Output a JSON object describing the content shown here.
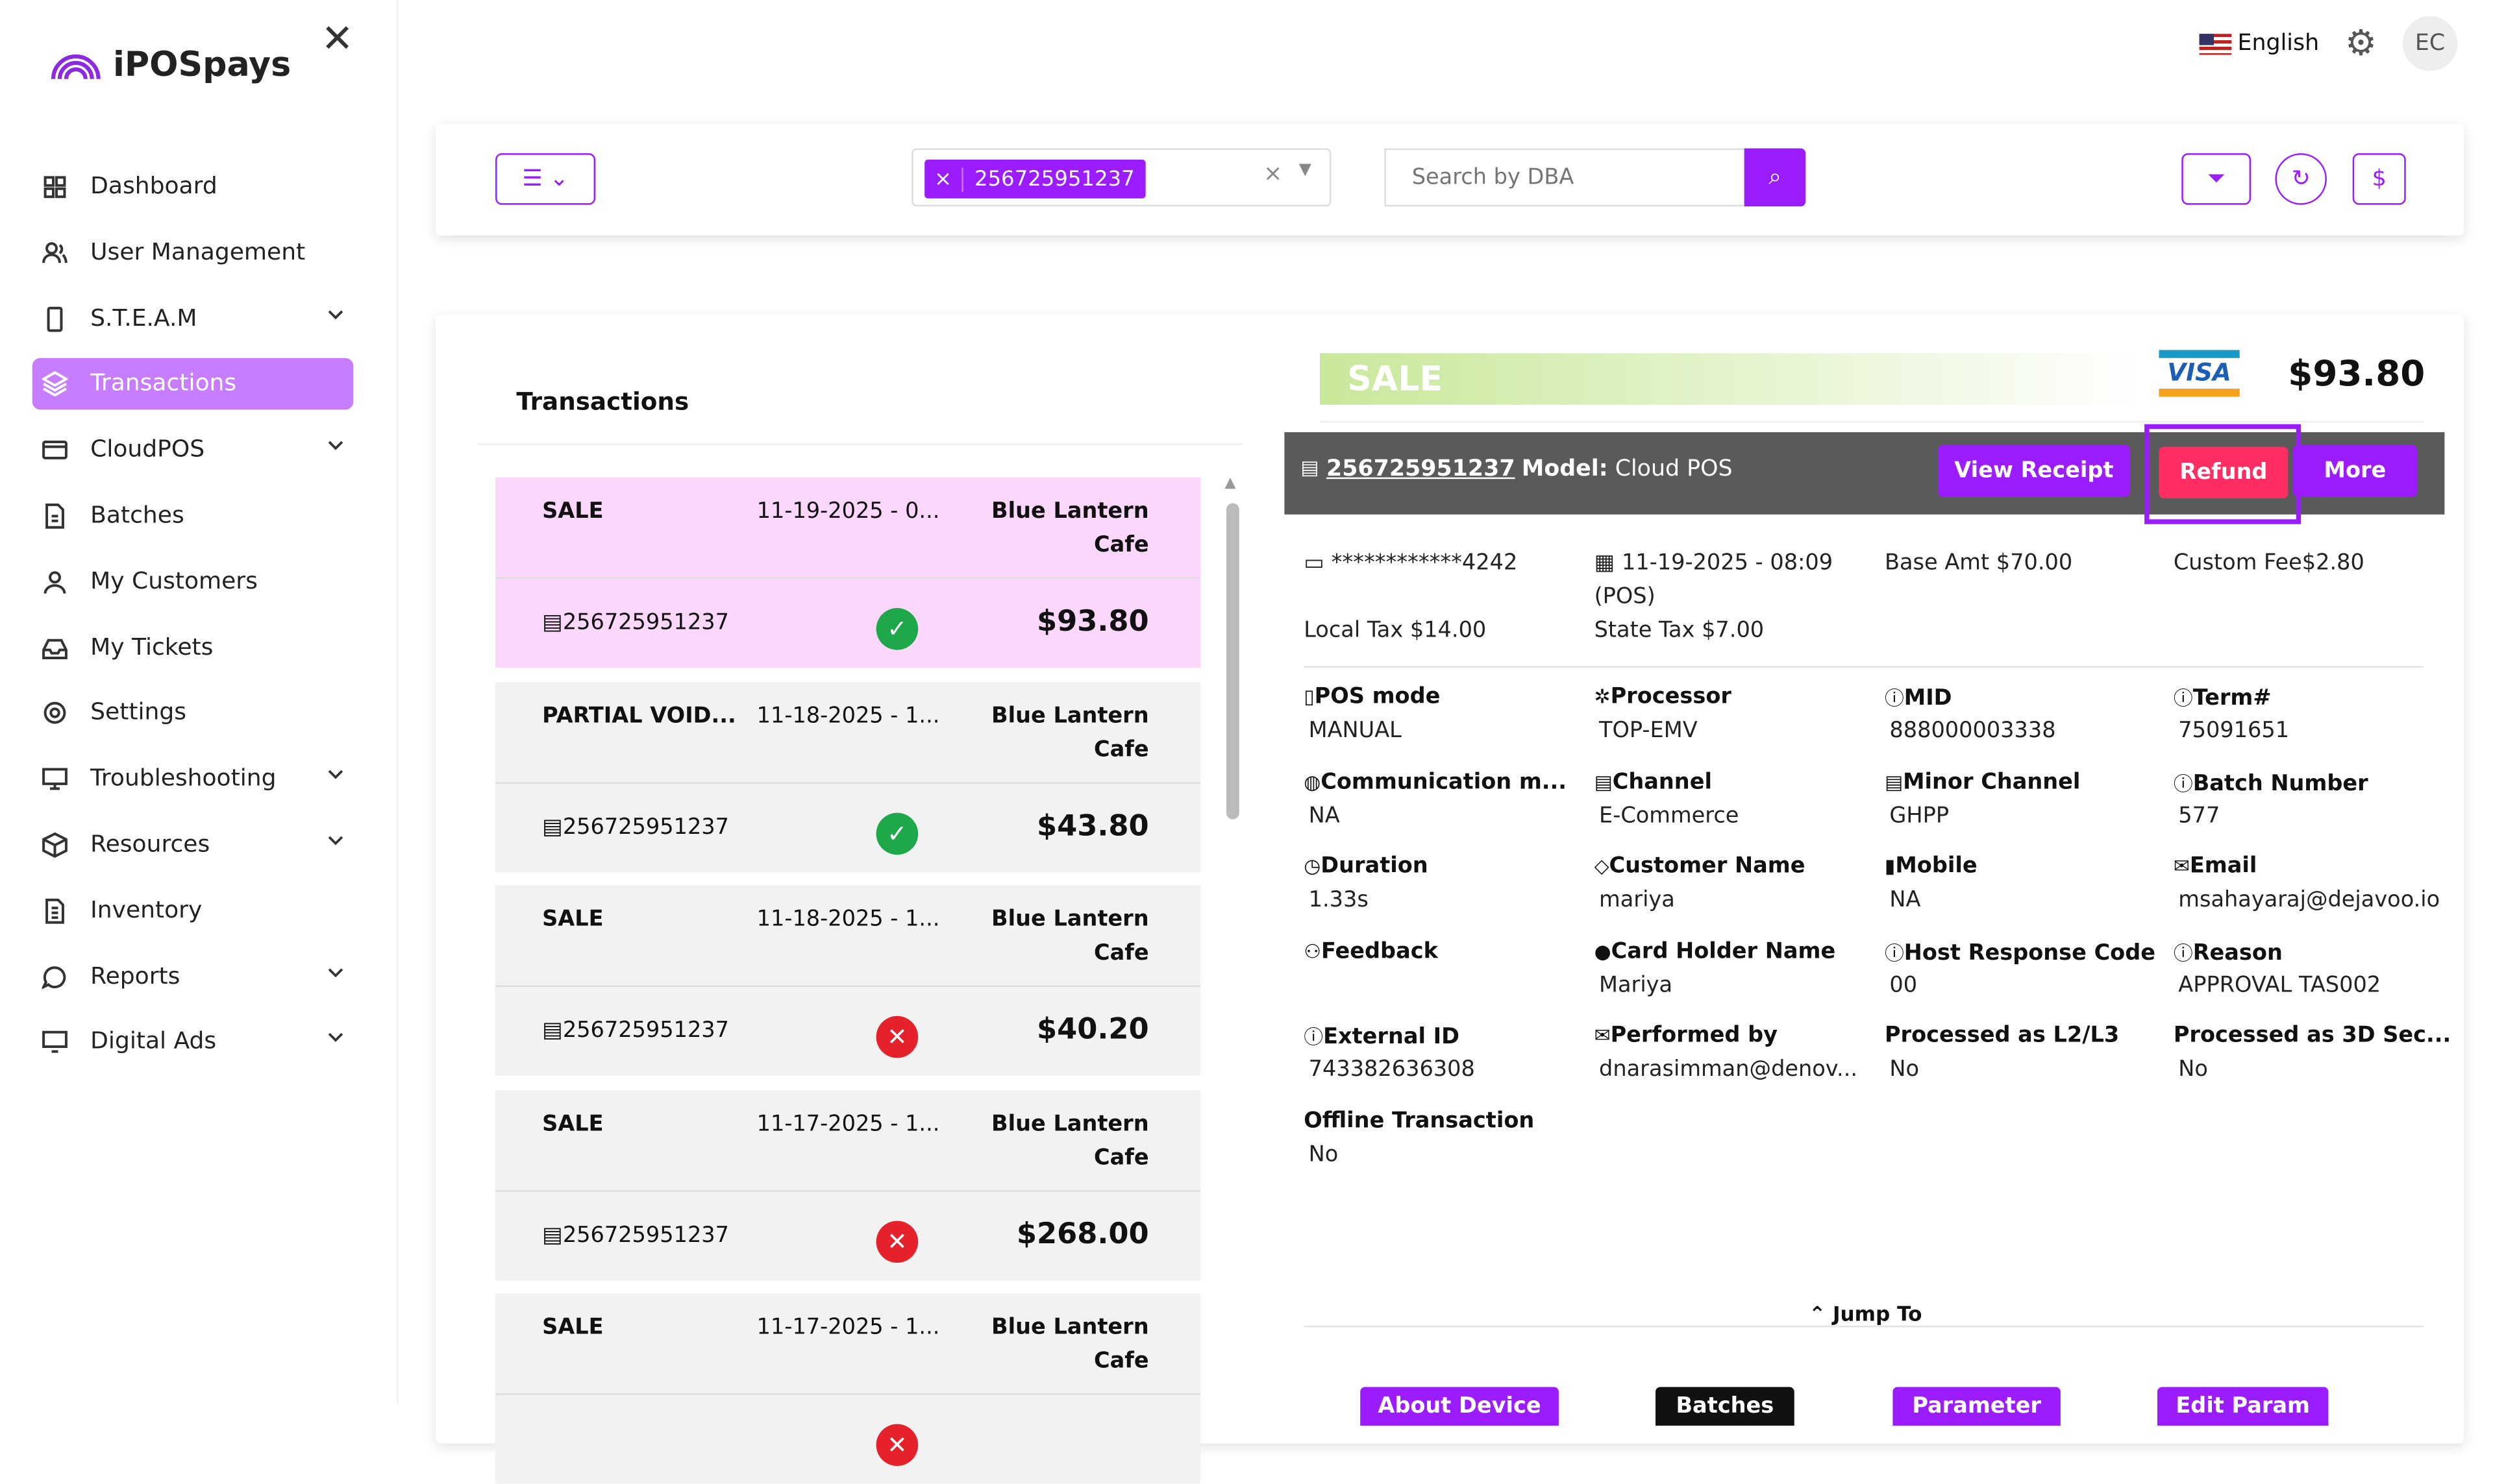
{
  "app": {
    "logo": "iPOSpays",
    "language": "English",
    "avatar": "EC"
  },
  "sidebar": {
    "items": [
      {
        "label": "Dashboard",
        "icon": "grid-icon",
        "chev": false
      },
      {
        "label": "User Management",
        "icon": "users-icon",
        "chev": false
      },
      {
        "label": "S.T.E.A.M",
        "icon": "device-icon",
        "chev": true
      },
      {
        "label": "Transactions",
        "icon": "layers-icon",
        "chev": false,
        "active": true
      },
      {
        "label": "CloudPOS",
        "icon": "card-icon",
        "chev": true
      },
      {
        "label": "Batches",
        "icon": "file-icon",
        "chev": false
      },
      {
        "label": "My Customers",
        "icon": "user-icon",
        "chev": false
      },
      {
        "label": "My Tickets",
        "icon": "inbox-icon",
        "chev": false
      },
      {
        "label": "Settings",
        "icon": "gear-icon",
        "chev": false
      },
      {
        "label": "Troubleshooting",
        "icon": "monitor-icon",
        "chev": true
      },
      {
        "label": "Resources",
        "icon": "box-icon",
        "chev": true
      },
      {
        "label": "Inventory",
        "icon": "document-icon",
        "chev": false
      },
      {
        "label": "Reports",
        "icon": "chat-icon",
        "chev": true
      },
      {
        "label": "Digital Ads",
        "icon": "display-icon",
        "chev": true
      }
    ]
  },
  "toolbar": {
    "chip": "256725951237",
    "search_placeholder": "Search by DBA"
  },
  "list": {
    "title": "Transactions",
    "items": [
      {
        "type": "SALE",
        "date": "11-19-2025 - 0...",
        "merchant1": "Blue Lantern",
        "merchant2": "Cafe",
        "id": "256725951237",
        "ok": true,
        "amount": "$93.80"
      },
      {
        "type": "PARTIAL VOID...",
        "date": "11-18-2025 - 1...",
        "merchant1": "Blue Lantern",
        "merchant2": "Cafe",
        "id": "256725951237",
        "ok": true,
        "amount": "$43.80"
      },
      {
        "type": "SALE",
        "date": "11-18-2025 - 1...",
        "merchant1": "Blue Lantern",
        "merchant2": "Cafe",
        "id": "256725951237",
        "ok": false,
        "amount": "$40.20"
      },
      {
        "type": "SALE",
        "date": "11-17-2025 - 1...",
        "merchant1": "Blue Lantern",
        "merchant2": "Cafe",
        "id": "256725951237",
        "ok": false,
        "amount": "$268.00"
      },
      {
        "type": "SALE",
        "date": "11-17-2025 - 1...",
        "merchant1": "Blue Lantern",
        "merchant2": "Cafe",
        "id": "",
        "ok": false,
        "amount": ""
      }
    ]
  },
  "detail": {
    "type": "SALE",
    "card_brand": "VISA",
    "amount": "$93.80",
    "tid": "256725951237",
    "model_label": "Model:",
    "model": "Cloud POS",
    "view_receipt": "View Receipt",
    "refund": "Refund",
    "more": "More",
    "card": "************4242",
    "datetime": "11-19-2025 - 08:09",
    "datetime2": "(POS)",
    "base": "Base Amt $70.00",
    "custom_fee": "Custom Fee$2.80",
    "local_tax": "Local Tax $14.00",
    "state_tax": "State Tax $7.00",
    "fields": [
      {
        "label": "POS mode",
        "value": "MANUAL",
        "icon": "pos-icon"
      },
      {
        "label": "Processor",
        "value": "TOP-EMV",
        "icon": "cog-icon"
      },
      {
        "label": "MID",
        "value": "888000003338",
        "icon": "info-icon"
      },
      {
        "label": "Term#",
        "value": "75091651",
        "icon": "info-icon"
      },
      {
        "label": "Communication m...",
        "value": "NA",
        "icon": "globe-icon"
      },
      {
        "label": "Channel",
        "value": "E-Commerce",
        "icon": "terminal-icon"
      },
      {
        "label": "Minor Channel",
        "value": "GHPP",
        "icon": "terminal-icon"
      },
      {
        "label": "Batch Number",
        "value": "577",
        "icon": "info-icon"
      },
      {
        "label": "Duration",
        "value": "1.33s",
        "icon": "clock-icon"
      },
      {
        "label": "Customer Name",
        "value": "mariya",
        "icon": "tag-icon"
      },
      {
        "label": "Mobile",
        "value": "NA",
        "icon": "mobile-icon"
      },
      {
        "label": "Email",
        "value": "msahayaraj@dejavoo.io",
        "icon": "mail-icon"
      },
      {
        "label": "Feedback",
        "value": "",
        "icon": "feedback-icon"
      },
      {
        "label": "Card Holder Name",
        "value": "Mariya",
        "icon": "person-icon"
      },
      {
        "label": "Host Response Code",
        "value": "00",
        "icon": "info-icon"
      },
      {
        "label": "Reason",
        "value": "APPROVAL TAS002",
        "icon": "info-icon"
      },
      {
        "label": "External ID",
        "value": "743382636308",
        "icon": "info-icon"
      },
      {
        "label": "Performed by",
        "value": "dnarasimman@denov...",
        "icon": "mail-icon"
      },
      {
        "label": "Processed as L2/L3",
        "value": "No",
        "icon": ""
      },
      {
        "label": "Processed as 3D Sec...",
        "value": "No",
        "icon": ""
      },
      {
        "label": "Offline Transaction",
        "value": "No",
        "icon": ""
      }
    ],
    "jump_to": "Jump To",
    "jump_buttons": [
      {
        "label": "About Device",
        "color": "#9b1cff"
      },
      {
        "label": "Batches",
        "color": "#111111"
      },
      {
        "label": "Parameter",
        "color": "#9b1cff"
      },
      {
        "label": "Edit Param",
        "color": "#9b1cff"
      }
    ]
  },
  "colors": {
    "accent": "#9b1cff",
    "refund": "#ff2d62",
    "success": "#1fa84a",
    "error": "#e5212b",
    "bar": "#5a5a5a"
  }
}
